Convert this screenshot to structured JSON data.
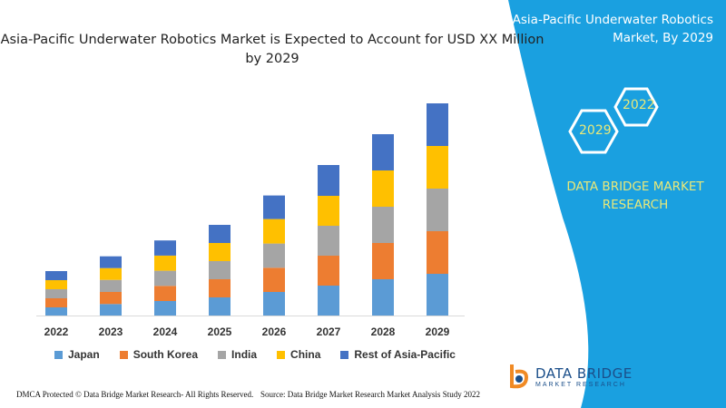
{
  "chart_data": {
    "type": "bar",
    "stacked": true,
    "title": "Asia-Pacific Underwater Robotics Market is Expected to Account for USD XX Million by 2029",
    "categories": [
      "2022",
      "2023",
      "2024",
      "2025",
      "2026",
      "2027",
      "2028",
      "2029"
    ],
    "series": [
      {
        "name": "Japan",
        "color": "#5b9bd5",
        "values": [
          9,
          12.7,
          16,
          20,
          26,
          33,
          40,
          46
        ]
      },
      {
        "name": "South Korea",
        "color": "#ed7d31",
        "values": [
          10,
          13.3,
          16.7,
          20,
          26.7,
          33,
          40,
          47
        ]
      },
      {
        "name": "India",
        "color": "#a5a5a5",
        "values": [
          10,
          13.3,
          16.7,
          20,
          26.7,
          33,
          40,
          47
        ]
      },
      {
        "name": "China",
        "color": "#ffc000",
        "values": [
          10,
          13,
          16.7,
          20,
          27,
          33,
          40,
          47
        ]
      },
      {
        "name": "Rest of Asia-Pacific",
        "color": "#4472c4",
        "values": [
          10,
          13,
          16.7,
          20,
          26,
          34,
          40,
          47
        ]
      }
    ],
    "ylim": [
      0,
      240
    ],
    "grid": false,
    "legend_position": "bottom"
  },
  "panel": {
    "title": "Asia-Pacific Underwater Robotics Market, By 2029",
    "hex_a": "2022",
    "hex_b": "2029",
    "brand": "DATA BRIDGE MARKET RESEARCH",
    "color": "#1aa0e0"
  },
  "footer": {
    "left": "DMCA Protected © Data Bridge Market Research- All Rights Reserved.",
    "right": "Source: Data Bridge Market Research Market Analysis Study 2022"
  },
  "logo": {
    "name": "DATA BRIDGE",
    "tagline": "MARKET RESEARCH"
  }
}
